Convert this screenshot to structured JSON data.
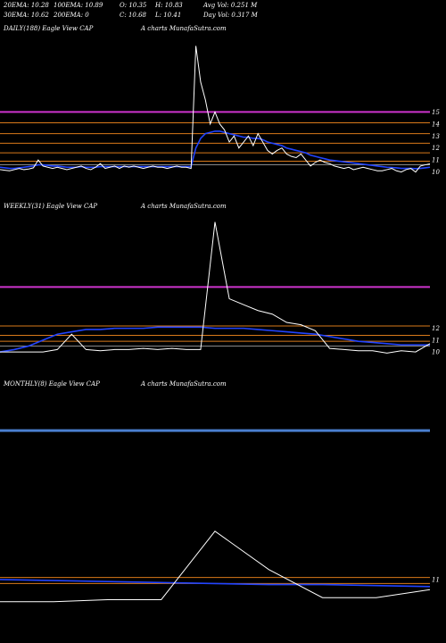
{
  "header": {
    "row1": [
      "20EMA: 10.28",
      "100EMA: 10.89",
      "O: 10.35",
      "H: 10.83",
      "Avg Vol: 0.251 M"
    ],
    "row2": [
      "30EMA: 10.62",
      "200EMA: 0",
      "C: 10.68",
      "L: 10.41",
      "Day Vol: 0.317 M"
    ]
  },
  "colors": {
    "background": "#000000",
    "price": "#ffffff",
    "ema": "#2244ff",
    "resistance_magenta": "#cc33cc",
    "resistance_blue": "#4a7fcf",
    "level_orange": "#d97a1a",
    "level_gray": "#888888"
  },
  "chart_data": [
    {
      "type": "line",
      "panel": "daily",
      "title": "DAILY(188) Eagle   View  CAP",
      "watermark": "A charts MunafaSutra.com",
      "y_ticks": [
        "15",
        "14",
        "13",
        "12",
        "11",
        "10"
      ],
      "price": [
        10.2,
        10.15,
        10.1,
        10.2,
        10.3,
        10.2,
        10.25,
        10.35,
        11.0,
        10.5,
        10.4,
        10.3,
        10.4,
        10.3,
        10.2,
        10.3,
        10.4,
        10.5,
        10.3,
        10.2,
        10.4,
        10.7,
        10.3,
        10.4,
        10.5,
        10.3,
        10.5,
        10.4,
        10.5,
        10.4,
        10.3,
        10.4,
        10.5,
        10.4,
        10.4,
        10.3,
        10.4,
        10.5,
        10.4,
        10.4,
        10.3,
        20.5,
        17.5,
        16.0,
        14.0,
        15.0,
        14.0,
        13.5,
        12.5,
        13.0,
        12.0,
        12.5,
        13.0,
        12.2,
        13.2,
        12.5,
        11.8,
        11.5,
        11.8,
        12.0,
        11.5,
        11.3,
        11.2,
        11.5,
        11.0,
        10.5,
        10.8,
        11.0,
        10.8,
        10.7,
        10.5,
        10.4,
        10.3,
        10.4,
        10.2,
        10.3,
        10.4,
        10.3,
        10.2,
        10.1,
        10.1,
        10.2,
        10.3,
        10.1,
        10.0,
        10.2,
        10.3,
        10.0,
        10.5,
        10.6,
        10.68
      ],
      "ema": [
        10.4,
        10.35,
        10.3,
        10.3,
        10.35,
        10.4,
        10.45,
        10.5,
        10.6,
        10.6,
        10.55,
        10.5,
        10.5,
        10.45,
        10.4,
        10.4,
        10.4,
        10.45,
        10.4,
        10.4,
        10.4,
        10.45,
        10.45,
        10.45,
        10.45,
        10.45,
        10.45,
        10.45,
        10.45,
        10.45,
        10.45,
        10.45,
        10.45,
        10.45,
        10.45,
        10.45,
        10.45,
        10.45,
        10.45,
        10.45,
        10.45,
        12.0,
        12.8,
        13.2,
        13.3,
        13.4,
        13.4,
        13.3,
        13.2,
        13.1,
        13.0,
        12.9,
        12.9,
        12.8,
        12.8,
        12.7,
        12.5,
        12.4,
        12.3,
        12.2,
        12.0,
        11.9,
        11.8,
        11.7,
        11.6,
        11.4,
        11.3,
        11.2,
        11.1,
        11.0,
        10.95,
        10.9,
        10.85,
        10.8,
        10.75,
        10.7,
        10.65,
        10.6,
        10.55,
        10.5,
        10.45,
        10.4,
        10.38,
        10.35,
        10.3,
        10.3,
        10.3,
        10.28,
        10.3,
        10.35,
        10.4
      ],
      "levels": [
        {
          "value": 15,
          "color": "#cc33cc",
          "width": 2
        },
        {
          "value": 14.1,
          "color": "#d97a1a",
          "width": 1
        },
        {
          "value": 13.2,
          "color": "#d97a1a",
          "width": 1
        },
        {
          "value": 12.4,
          "color": "#d97a1a",
          "width": 1
        },
        {
          "value": 11.6,
          "color": "#d97a1a",
          "width": 1
        },
        {
          "value": 10.9,
          "color": "#d97a1a",
          "width": 1
        },
        {
          "value": 10.6,
          "color": "#888888",
          "width": 1
        }
      ]
    },
    {
      "type": "line",
      "panel": "weekly",
      "title": "WEEKLY(31) Eagle   View  CAP",
      "watermark": "A charts MunafaSutra.com",
      "y_ticks": [
        "12",
        "11",
        "10"
      ],
      "price": [
        10.0,
        10.0,
        10.0,
        10.0,
        10.2,
        11.5,
        10.2,
        10.1,
        10.2,
        10.2,
        10.3,
        10.2,
        10.3,
        10.2,
        10.2,
        21.0,
        14.5,
        14.0,
        13.5,
        13.2,
        12.5,
        12.3,
        11.8,
        10.3,
        10.2,
        10.1,
        10.1,
        9.9,
        10.1,
        10.0,
        10.7
      ],
      "ema": [
        10.0,
        10.2,
        10.5,
        11.0,
        11.5,
        11.7,
        11.9,
        11.9,
        12.0,
        12.0,
        12.0,
        12.1,
        12.1,
        12.1,
        12.1,
        12.0,
        12.0,
        12.0,
        11.9,
        11.8,
        11.7,
        11.6,
        11.5,
        11.3,
        11.1,
        10.9,
        10.8,
        10.7,
        10.6,
        10.6,
        10.6
      ],
      "levels": [
        {
          "value": 15.5,
          "color": "#cc33cc",
          "width": 2
        },
        {
          "value": 12.2,
          "color": "#d97a1a",
          "width": 1
        },
        {
          "value": 11.4,
          "color": "#d97a1a",
          "width": 1
        },
        {
          "value": 10.9,
          "color": "#d97a1a",
          "width": 1
        },
        {
          "value": 10.5,
          "color": "#888888",
          "width": 1
        }
      ]
    },
    {
      "type": "line",
      "panel": "monthly",
      "title": "MONTHLY(8) Eagle   View  CAP",
      "watermark": "A charts MunafaSutra.com",
      "y_ticks": [
        "11"
      ],
      "price": [
        10.0,
        10.0,
        10.1,
        10.1,
        13.5,
        11.6,
        10.2,
        10.2,
        10.6
      ],
      "ema": [
        11.1,
        11.05,
        11.0,
        10.95,
        10.9,
        10.85,
        10.85,
        10.8,
        10.75
      ],
      "levels": [
        {
          "value": 18.5,
          "color": "#4a7fcf",
          "width": 3
        },
        {
          "value": 11.2,
          "color": "#d97a1a",
          "width": 1
        },
        {
          "value": 10.9,
          "color": "#d97a1a",
          "width": 1
        }
      ]
    }
  ]
}
